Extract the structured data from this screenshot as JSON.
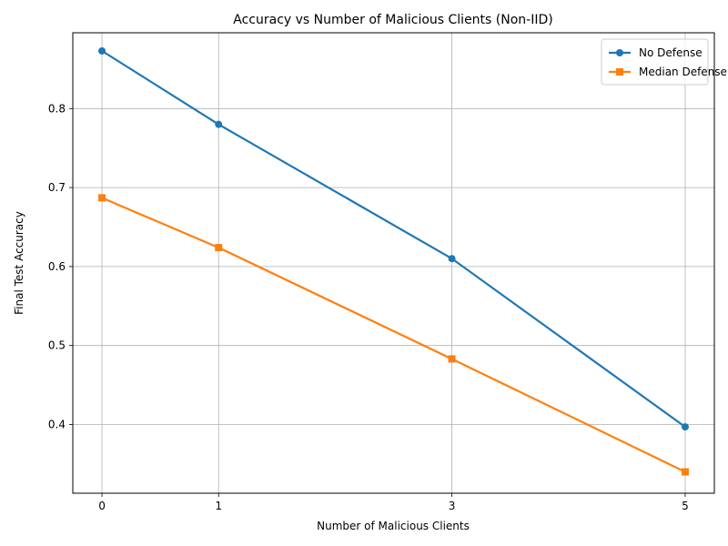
{
  "chart_data": {
    "type": "line",
    "title": "Accuracy vs Number of Malicious Clients (Non-IID)",
    "xlabel": "Number of Malicious Clients",
    "ylabel": "Final Test Accuracy",
    "x": [
      0,
      1,
      3,
      5
    ],
    "x_ticks": [
      "0",
      "1",
      "3",
      "5"
    ],
    "y_ticks": [
      "0.4",
      "0.5",
      "0.6",
      "0.7",
      "0.8"
    ],
    "xlim": [
      -0.25,
      5.25
    ],
    "ylim": [
      0.313,
      0.896
    ],
    "grid": true,
    "legend_position": "top-right",
    "series": [
      {
        "name": "No Defense",
        "color": "#1f77b4",
        "marker": "circle",
        "values": [
          0.873,
          0.78,
          0.61,
          0.397
        ]
      },
      {
        "name": "Median Defense",
        "color": "#ff7f0e",
        "marker": "square",
        "values": [
          0.687,
          0.624,
          0.483,
          0.34
        ]
      }
    ]
  }
}
